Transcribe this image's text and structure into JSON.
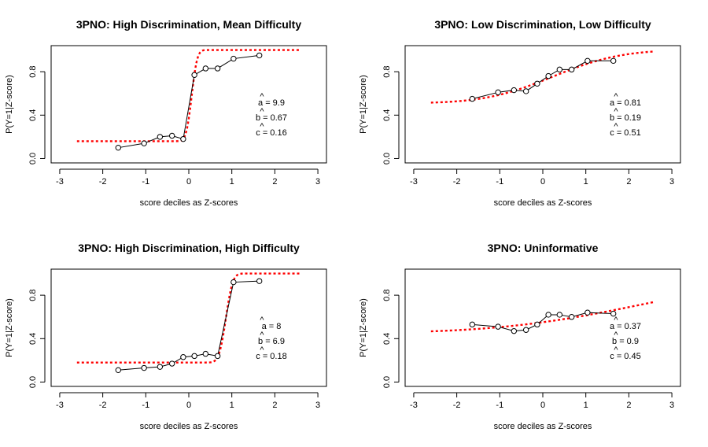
{
  "chart_data": [
    {
      "type": "line",
      "title": "3PNO: High Discrimination, Mean Difficulty",
      "xlabel": "score deciles as Z-scores",
      "ylabel": "P(Y=1|Z-score)",
      "xlim": [
        -3.2,
        3.2
      ],
      "ylim": [
        -0.04,
        1.04
      ],
      "xticks": [
        "-3",
        "-2",
        "-1",
        "0",
        "1",
        "2",
        "3"
      ],
      "yticks": [
        "0.0",
        "0.4",
        "0.8"
      ],
      "series": [
        {
          "style": "observed",
          "x": [
            -1.64,
            -1.04,
            -0.67,
            -0.39,
            -0.13,
            0.13,
            0.39,
            0.67,
            1.04,
            1.64
          ],
          "y": [
            0.1,
            0.14,
            0.2,
            0.21,
            0.18,
            0.77,
            0.83,
            0.83,
            0.92,
            0.95
          ]
        },
        {
          "style": "fitted",
          "color": "#ff0000",
          "a": 9.9,
          "b": 0.67,
          "c": 0.16
        }
      ],
      "annotations": [
        "a = 9.9",
        "b = 0.67",
        "c = 0.16"
      ]
    },
    {
      "type": "line",
      "title": "3PNO: Low Discrimination, Low Difficulty",
      "xlabel": "score deciles as Z-scores",
      "ylabel": "P(Y=1|Z-score)",
      "xlim": [
        -3.2,
        3.2
      ],
      "ylim": [
        -0.04,
        1.04
      ],
      "xticks": [
        "-3",
        "-2",
        "-1",
        "0",
        "1",
        "2",
        "3"
      ],
      "yticks": [
        "0.0",
        "0.4",
        "0.8"
      ],
      "series": [
        {
          "style": "observed",
          "x": [
            -1.64,
            -1.04,
            -0.67,
            -0.39,
            -0.13,
            0.13,
            0.39,
            0.67,
            1.04,
            1.64
          ],
          "y": [
            0.55,
            0.61,
            0.63,
            0.62,
            0.69,
            0.76,
            0.82,
            0.82,
            0.9,
            0.9
          ]
        },
        {
          "style": "fitted",
          "color": "#ff0000",
          "a": 0.81,
          "b": 0.19,
          "c": 0.51
        }
      ],
      "annotations": [
        "a = 0.81",
        "b = 0.19",
        "c = 0.51"
      ]
    },
    {
      "type": "line",
      "title": "3PNO: High Discrimination, High Difficulty",
      "xlabel": "score deciles as Z-scores",
      "ylabel": "P(Y=1|Z-score)",
      "xlim": [
        -3.2,
        3.2
      ],
      "ylim": [
        -0.04,
        1.04
      ],
      "xticks": [
        "-3",
        "-2",
        "-1",
        "0",
        "1",
        "2",
        "3"
      ],
      "yticks": [
        "0.0",
        "0.4",
        "0.8"
      ],
      "series": [
        {
          "style": "observed",
          "x": [
            -1.64,
            -1.04,
            -0.67,
            -0.39,
            -0.13,
            0.13,
            0.39,
            0.67,
            1.04,
            1.64
          ],
          "y": [
            0.11,
            0.13,
            0.14,
            0.17,
            0.23,
            0.24,
            0.26,
            0.24,
            0.92,
            0.93
          ]
        },
        {
          "style": "fitted",
          "color": "#ff0000",
          "a": 8,
          "b": 6.9,
          "c": 0.18
        }
      ],
      "annotations": [
        "a = 8",
        "b = 6.9",
        "c = 0.18"
      ]
    },
    {
      "type": "line",
      "title": "3PNO: Uninformative",
      "xlabel": "score deciles as Z-scores",
      "ylabel": "P(Y=1|Z-score)",
      "xlim": [
        -3.2,
        3.2
      ],
      "ylim": [
        -0.04,
        1.04
      ],
      "xticks": [
        "-3",
        "-2",
        "-1",
        "0",
        "1",
        "2",
        "3"
      ],
      "yticks": [
        "0.0",
        "0.4",
        "0.8"
      ],
      "series": [
        {
          "style": "observed",
          "x": [
            -1.64,
            -1.04,
            -0.67,
            -0.39,
            -0.13,
            0.13,
            0.39,
            0.67,
            1.04,
            1.64
          ],
          "y": [
            0.53,
            0.51,
            0.47,
            0.48,
            0.53,
            0.62,
            0.62,
            0.6,
            0.64,
            0.63
          ]
        },
        {
          "style": "fitted",
          "color": "#ff0000",
          "a": 0.37,
          "b": 0.9,
          "c": 0.45
        }
      ],
      "annotations": [
        "a = 0.37",
        "b = 0.9",
        "c = 0.45"
      ]
    }
  ]
}
